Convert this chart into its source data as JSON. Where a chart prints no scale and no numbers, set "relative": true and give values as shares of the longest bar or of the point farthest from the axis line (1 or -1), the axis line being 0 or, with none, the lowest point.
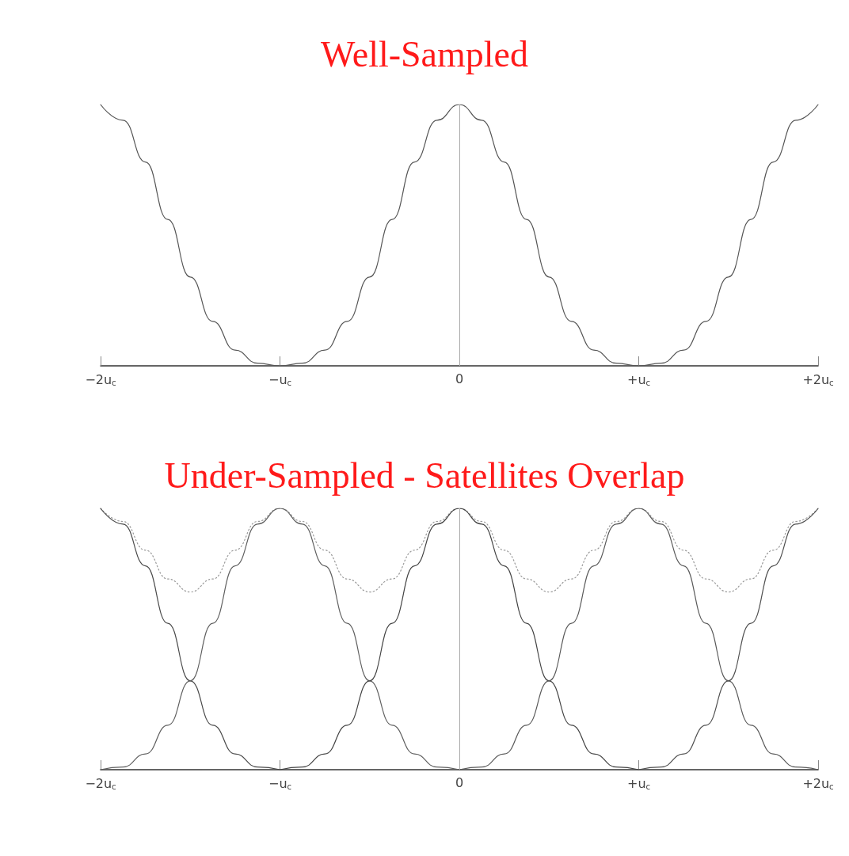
{
  "chart_data": [
    {
      "type": "line",
      "title": "Well-Sampled",
      "relative": true,
      "marker": "none",
      "line_style": "solid",
      "xlim": [
        -2,
        2
      ],
      "xticks": [
        {
          "value": -2,
          "label": "−2u$_{c}$"
        },
        {
          "value": -1,
          "label": "−u$_{c}$"
        },
        0,
        {
          "value": 1,
          "label": "+u$_{c}$"
        },
        {
          "value": 2,
          "label": "+2u$_{c}$"
        }
      ],
      "ref_lines": [
        {
          "axis": "x",
          "value": 0,
          "color": "#aaaaaa"
        }
      ],
      "series": [
        {
          "color": "#555555",
          "x": [
            -2,
            -1.875,
            -1.75,
            -1.625,
            -1.5,
            -1.375,
            -1.25,
            -1.125,
            -1,
            -0.875,
            -0.75,
            -0.625,
            -0.5,
            -0.375,
            -0.25,
            -0.125,
            0,
            0.125,
            0.25,
            0.375,
            0.5,
            0.625,
            0.75,
            0.875,
            1,
            1.125,
            1.25,
            1.375,
            1.5,
            1.625,
            1.75,
            1.875,
            2
          ],
          "values": [
            1,
            0.94,
            0.78,
            0.56,
            0.34,
            0.17,
            0.06,
            0.01,
            0,
            0.01,
            0.06,
            0.17,
            0.34,
            0.56,
            0.78,
            0.94,
            1,
            0.94,
            0.78,
            0.56,
            0.34,
            0.17,
            0.06,
            0.01,
            0,
            0.01,
            0.06,
            0.17,
            0.34,
            0.56,
            0.78,
            0.94,
            1
          ]
        }
      ]
    },
    {
      "type": "line",
      "title": "Under-Sampled - Satellites Overlap",
      "relative": true,
      "marker": "none",
      "line_style": "solid",
      "xlim": [
        -2,
        2
      ],
      "xticks": [
        {
          "value": -2,
          "label": "−2u$_{c}$"
        },
        {
          "value": -1,
          "label": "−u$_{c}$"
        },
        0,
        {
          "value": 1,
          "label": "+u$_{c}$"
        },
        {
          "value": 2,
          "label": "+2u$_{c}$"
        }
      ],
      "ref_lines": [
        {
          "axis": "x",
          "value": 0,
          "color": "#aaaaaa"
        }
      ],
      "series": [
        {
          "color": "#999999",
          "line_style": "dotted",
          "x": [
            -2,
            -1.875,
            -1.75,
            -1.625,
            -1.5,
            -1.375,
            -1.25,
            -1.125,
            -1,
            -0.875,
            -0.75,
            -0.625,
            -0.5,
            -0.375,
            -0.25,
            -0.125,
            0,
            0.125,
            0.25,
            0.375,
            0.5,
            0.625,
            0.75,
            0.875,
            1,
            1.125,
            1.25,
            1.375,
            1.5,
            1.625,
            1.75,
            1.875,
            2
          ],
          "values": [
            1,
            0.95,
            0.84,
            0.73,
            0.68,
            0.73,
            0.84,
            0.95,
            1,
            0.95,
            0.84,
            0.73,
            0.68,
            0.73,
            0.84,
            0.95,
            1,
            0.95,
            0.84,
            0.73,
            0.68,
            0.73,
            0.84,
            0.95,
            1,
            0.95,
            0.84,
            0.73,
            0.68,
            0.73,
            0.84,
            0.95,
            1
          ]
        },
        {
          "color": "#4a4a4a",
          "x": [
            -2,
            -1.875,
            -1.75,
            -1.625,
            -1.5,
            -1.375,
            -1.25,
            -1.125,
            -1
          ],
          "values": [
            1,
            0.94,
            0.78,
            0.56,
            0.34,
            0.17,
            0.06,
            0.01,
            0
          ]
        },
        {
          "color": "#606060",
          "x": [
            -2,
            -1.875,
            -1.75,
            -1.625,
            -1.5,
            -1.375,
            -1.25,
            -1.125,
            -1,
            -0.875,
            -0.75,
            -0.625,
            -0.5,
            -0.375,
            -0.25,
            -0.125,
            0
          ],
          "values": [
            0,
            0.01,
            0.06,
            0.17,
            0.34,
            0.56,
            0.78,
            0.94,
            1,
            0.94,
            0.78,
            0.56,
            0.34,
            0.17,
            0.06,
            0.01,
            0
          ]
        },
        {
          "color": "#444444",
          "x": [
            -1,
            -0.875,
            -0.75,
            -0.625,
            -0.5,
            -0.375,
            -0.25,
            -0.125,
            0,
            0.125,
            0.25,
            0.375,
            0.5,
            0.625,
            0.75,
            0.875,
            1
          ],
          "values": [
            0,
            0.01,
            0.06,
            0.17,
            0.34,
            0.56,
            0.78,
            0.94,
            1,
            0.94,
            0.78,
            0.56,
            0.34,
            0.17,
            0.06,
            0.01,
            0
          ]
        },
        {
          "color": "#5a5a5a",
          "x": [
            0,
            0.125,
            0.25,
            0.375,
            0.5,
            0.625,
            0.75,
            0.875,
            1,
            1.125,
            1.25,
            1.375,
            1.5,
            1.625,
            1.75,
            1.875,
            2
          ],
          "values": [
            0,
            0.01,
            0.06,
            0.17,
            0.34,
            0.56,
            0.78,
            0.94,
            1,
            0.94,
            0.78,
            0.56,
            0.34,
            0.17,
            0.06,
            0.01,
            0
          ]
        },
        {
          "color": "#505050",
          "x": [
            1,
            1.125,
            1.25,
            1.375,
            1.5,
            1.625,
            1.75,
            1.875,
            2
          ],
          "values": [
            0,
            0.01,
            0.06,
            0.17,
            0.34,
            0.56,
            0.78,
            0.94,
            1
          ]
        }
      ]
    }
  ]
}
